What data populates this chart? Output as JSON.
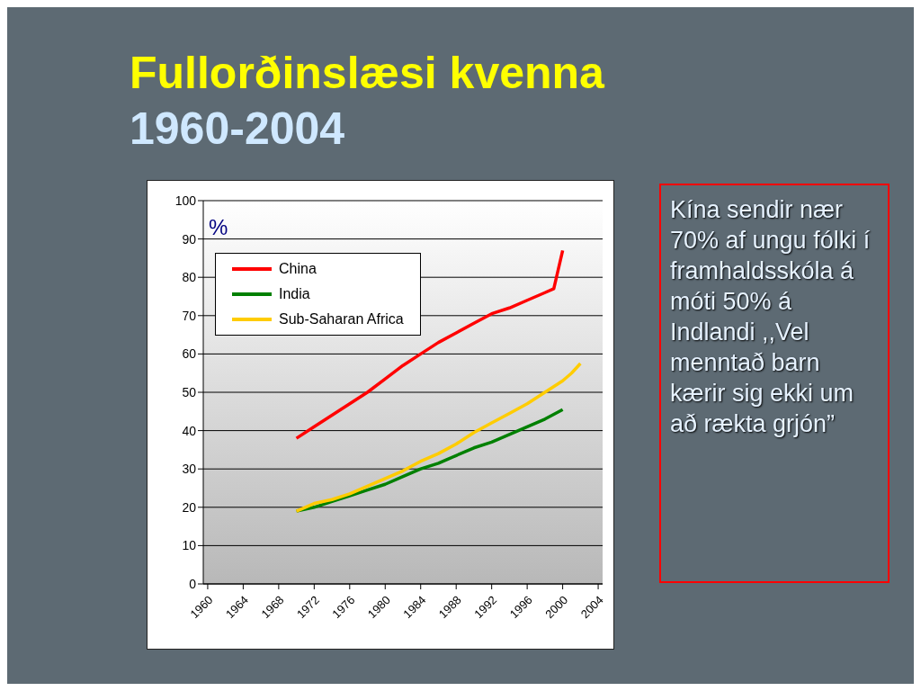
{
  "chart_data": {
    "type": "line",
    "title": "Fullorðinslæsi kvenna",
    "subtitle": "1960-2004",
    "ylabel": "%",
    "xlim": [
      1959.5,
      2004.5
    ],
    "xticks": [
      1960,
      1964,
      1968,
      1972,
      1976,
      1980,
      1984,
      1988,
      1992,
      1996,
      2000,
      2004
    ],
    "ylim": [
      0,
      100
    ],
    "yticks": [
      0,
      10,
      20,
      30,
      40,
      50,
      60,
      70,
      80,
      90,
      100
    ],
    "grid": "y",
    "legend": "top left",
    "marker": "none",
    "line_style": "solid",
    "series": [
      {
        "name": "China",
        "color": "#ff0000",
        "x": [
          1970,
          1972,
          1974,
          1976,
          1978,
          1980,
          1982,
          1984,
          1986,
          1988,
          1990,
          1992,
          1994,
          1996,
          1998,
          1999,
          2000
        ],
        "values": [
          38,
          41,
          44,
          47,
          50,
          53.5,
          57,
          60,
          63,
          65.5,
          68,
          70.5,
          72,
          74,
          76,
          77,
          87
        ]
      },
      {
        "name": "India",
        "color": "#008000",
        "x": [
          1970,
          1972,
          1974,
          1976,
          1978,
          1980,
          1982,
          1984,
          1986,
          1988,
          1990,
          1992,
          1994,
          1996,
          1998,
          2000
        ],
        "values": [
          19,
          20,
          21.5,
          23,
          24.5,
          26,
          28,
          30,
          31.5,
          33.5,
          35.5,
          37,
          39,
          41,
          43,
          45.5
        ]
      },
      {
        "name": "Sub-Saharan Africa",
        "color": "#ffcc00",
        "x": [
          1970,
          1972,
          1974,
          1976,
          1978,
          1980,
          1982,
          1984,
          1986,
          1988,
          1990,
          1992,
          1994,
          1996,
          1998,
          2000,
          2001,
          2002
        ],
        "values": [
          19,
          21,
          22,
          23.5,
          25.5,
          27.5,
          29.5,
          32,
          34,
          36.5,
          39.5,
          42,
          44.5,
          47,
          50,
          53,
          55,
          57.5
        ]
      }
    ],
    "annotations": [
      "Kína sendir nær 70% af ungu fólki í framhaldsskóla á móti 50% á Indlandi ,,Vel menntað barn kærir sig ekki um að rækta grjón”"
    ]
  }
}
